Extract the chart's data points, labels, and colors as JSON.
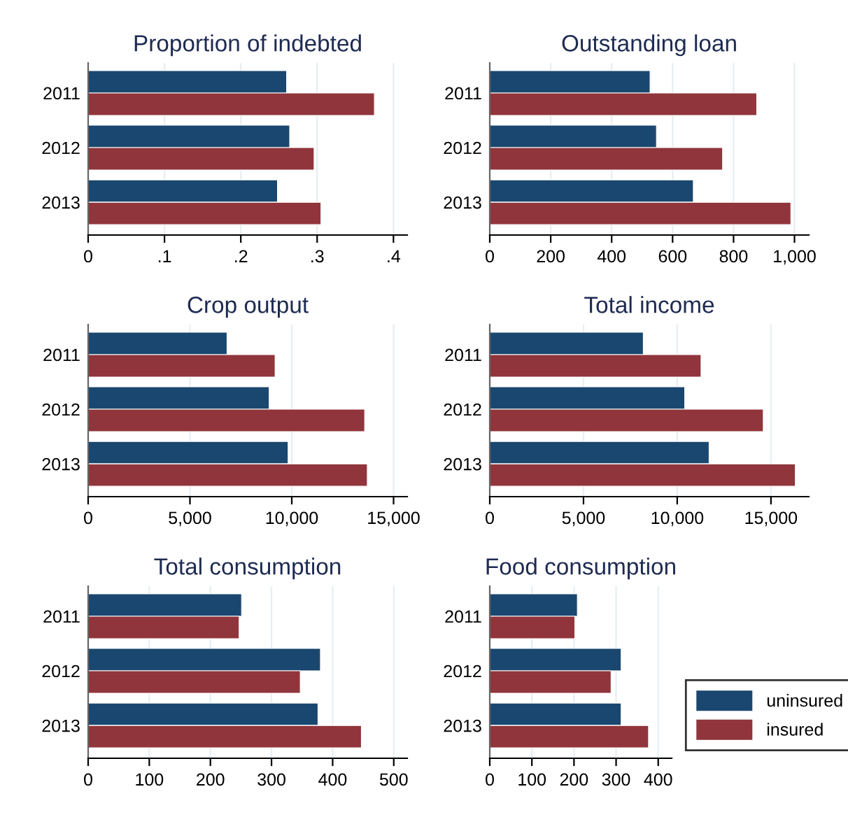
{
  "chart_data": [
    {
      "type": "bar",
      "orientation": "horizontal",
      "title": "Proportion of indebted",
      "categories": [
        "2011",
        "2012",
        "2013"
      ],
      "xlim": [
        0,
        0.418
      ],
      "xticks": [
        {
          "value": 0,
          "label": "0"
        },
        {
          "value": 0.1,
          "label": ".1"
        },
        {
          "value": 0.2,
          "label": ".2"
        },
        {
          "value": 0.3,
          "label": ".3"
        },
        {
          "value": 0.4,
          "label": ".4"
        }
      ],
      "grid": "x",
      "legend": false,
      "series": [
        {
          "color": "#1a476f",
          "values": [
            0.26,
            0.264,
            0.248
          ]
        },
        {
          "color": "#90353b",
          "values": [
            0.375,
            0.296,
            0.305
          ]
        }
      ]
    },
    {
      "type": "bar",
      "orientation": "horizontal",
      "title": "Outstanding loan",
      "categories": [
        "2011",
        "2012",
        "2013"
      ],
      "xlim": [
        0,
        1047
      ],
      "xticks": [
        0,
        200,
        400,
        600,
        800,
        {
          "value": 1000,
          "label": "1,000"
        }
      ],
      "grid": "x",
      "legend": false,
      "series": [
        {
          "color": "#1a476f",
          "values": [
            526,
            547,
            668
          ]
        },
        {
          "color": "#90353b",
          "values": [
            876,
            764,
            988
          ]
        }
      ]
    },
    {
      "type": "bar",
      "orientation": "horizontal",
      "title": "Crop output",
      "categories": [
        "2011",
        "2012",
        "2013"
      ],
      "xlim": [
        0,
        15670
      ],
      "xticks": [
        0,
        {
          "value": 5000,
          "label": "5,000"
        },
        {
          "value": 10000,
          "label": "10,000"
        },
        {
          "value": 15000,
          "label": "15,000"
        }
      ],
      "grid": "x",
      "legend": false,
      "series": [
        {
          "color": "#1a476f",
          "values": [
            6820,
            8890,
            9820
          ]
        },
        {
          "color": "#90353b",
          "values": [
            9180,
            13580,
            13710
          ]
        }
      ]
    },
    {
      "type": "bar",
      "orientation": "horizontal",
      "title": "Total income",
      "categories": [
        "2011",
        "2012",
        "2013"
      ],
      "xlim": [
        0,
        17020
      ],
      "xticks": [
        0,
        {
          "value": 5000,
          "label": "5,000"
        },
        {
          "value": 10000,
          "label": "10,000"
        },
        {
          "value": 15000,
          "label": "15,000"
        }
      ],
      "grid": "x",
      "legend": false,
      "series": [
        {
          "color": "#1a476f",
          "values": [
            8190,
            10400,
            11700
          ]
        },
        {
          "color": "#90353b",
          "values": [
            11270,
            14590,
            16300
          ]
        }
      ]
    },
    {
      "type": "bar",
      "orientation": "horizontal",
      "title": "Total consumption",
      "categories": [
        "2011",
        "2012",
        "2013"
      ],
      "xlim": [
        0,
        522
      ],
      "xticks": [
        0,
        100,
        200,
        300,
        400,
        500
      ],
      "grid": "x",
      "legend": false,
      "series": [
        {
          "color": "#1a476f",
          "values": [
            251,
            380,
            376
          ]
        },
        {
          "color": "#90353b",
          "values": [
            247,
            347,
            447
          ]
        }
      ]
    },
    {
      "type": "bar",
      "orientation": "horizontal",
      "title": "Food consumption",
      "categories": [
        "2011",
        "2012",
        "2013"
      ],
      "xlim": [
        0,
        432
      ],
      "xticks": [
        0,
        100,
        200,
        300,
        400
      ],
      "grid": "x",
      "legend": "right",
      "series": [
        {
          "name": "uninsured",
          "color": "#1a476f",
          "values": [
            208,
            312,
            312
          ]
        },
        {
          "name": "insured",
          "color": "#90353b",
          "values": [
            202,
            288,
            377
          ]
        }
      ]
    }
  ]
}
